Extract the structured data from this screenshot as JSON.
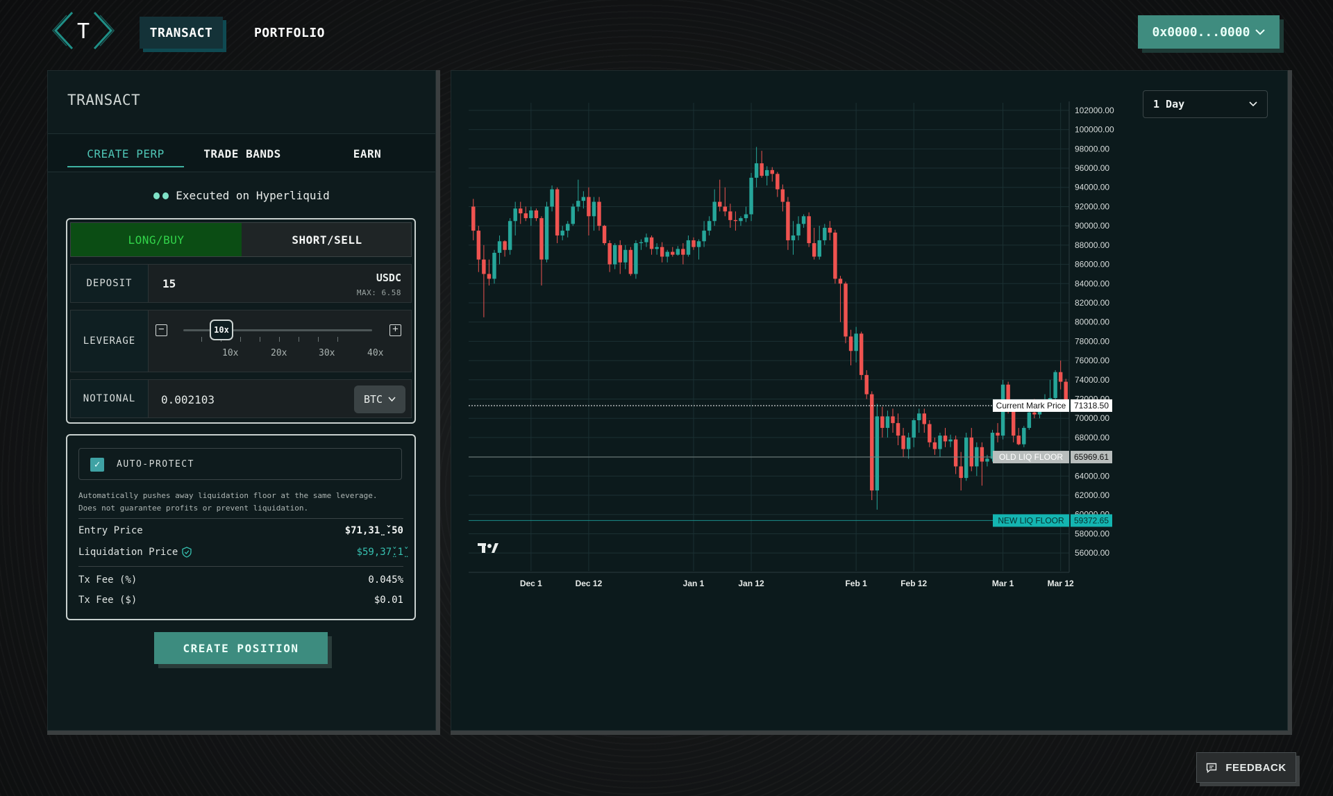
{
  "header": {
    "logo_letter": "T",
    "nav": [
      {
        "label": "TRANSACT"
      },
      {
        "label": "PORTFOLIO"
      }
    ],
    "wallet": "0x0000...0000"
  },
  "transact": {
    "title": "TRANSACT",
    "tabs": [
      {
        "label": "CREATE PERP"
      },
      {
        "label": "TRADE BANDS"
      },
      {
        "label": "EARN"
      }
    ],
    "executed_on": "Executed on Hyperliquid",
    "side": {
      "long": "LONG/BUY",
      "short": "SHORT/SELL"
    },
    "deposit": {
      "label": "DEPOSIT",
      "value": "15",
      "currency": "USDC",
      "max": "MAX: 6.58"
    },
    "leverage": {
      "label": "LEVERAGE",
      "current": "10x",
      "ticks": [
        "10x",
        "20x",
        "30x",
        "40x"
      ]
    },
    "notional": {
      "label": "NOTIONAL",
      "value": "0.002103",
      "asset": "BTC"
    },
    "auto_protect": {
      "label": "AUTO-PROTECT",
      "checked": true,
      "desc1": "Automatically pushes away liquidation floor at the same leverage.",
      "desc2": "Does not guarantee profits or prevent liquidation."
    },
    "entry_price": {
      "label": "Entry Price",
      "value": "$71,31̤̌.50"
    },
    "liq_price": {
      "label": "Liquidation Price",
      "value": "$59,37̤̌.1̤̌"
    },
    "tx_fee_pct": {
      "label": "Tx Fee (%)",
      "value": "0.045%"
    },
    "tx_fee_usd": {
      "label": "Tx Fee ($)",
      "value": "$0.01"
    },
    "create_button": "CREATE POSITION"
  },
  "feedback": "FEEDBACK",
  "colors": {
    "up": "#26a69a",
    "down": "#ef5350",
    "accent": "#3f8c7f",
    "long_bg": "#0b4d14",
    "long_text": "#32d44a"
  },
  "chart_data": {
    "type": "candlestick",
    "interval": "1 Day",
    "y_ticks": [
      "102000.00",
      "100000.00",
      "98000.00",
      "96000.00",
      "94000.00",
      "92000.00",
      "90000.00",
      "88000.00",
      "86000.00",
      "84000.00",
      "82000.00",
      "80000.00",
      "78000.00",
      "76000.00",
      "74000.00",
      "72000.00",
      "70000.00",
      "68000.00",
      "66000.00",
      "64000.00",
      "62000.00",
      "60000.00",
      "58000.00",
      "56000.00"
    ],
    "ylim": [
      55000,
      102500
    ],
    "x_ticks": [
      {
        "label": "Dec 1",
        "day": 11
      },
      {
        "label": "Dec 12",
        "day": 22
      },
      {
        "label": "Jan 1",
        "day": 42
      },
      {
        "label": "Jan 12",
        "day": 53
      },
      {
        "label": "Feb 1",
        "day": 73
      },
      {
        "label": "Feb 12",
        "day": 84
      },
      {
        "label": "Mar 1",
        "day": 101
      },
      {
        "label": "Mar 12",
        "day": 112
      }
    ],
    "levels": [
      {
        "name": "Current Mark Price",
        "value": 71318.5,
        "label": "71318.50",
        "style": "dotted",
        "color": "#ffffff"
      },
      {
        "name": "OLD LIQ FLOOR",
        "value": 65969.61,
        "label": "65969.61",
        "style": "solid",
        "color": "#b8bdbc"
      },
      {
        "name": "NEW LIQ FLOOR",
        "value": 59372.65,
        "label": "59372.65",
        "style": "solid",
        "color": "#1fb7b3"
      }
    ],
    "candles": [
      [
        92000,
        92800,
        88500,
        89500
      ],
      [
        89500,
        90000,
        85200,
        86500
      ],
      [
        86500,
        88000,
        80500,
        85000
      ],
      [
        85000,
        86500,
        83800,
        84500
      ],
      [
        84500,
        87500,
        84000,
        87200
      ],
      [
        87200,
        89000,
        86000,
        88400
      ],
      [
        88400,
        88500,
        86800,
        87500
      ],
      [
        87500,
        90800,
        87000,
        90500
      ],
      [
        90500,
        92500,
        89000,
        91800
      ],
      [
        91800,
        92500,
        90200,
        91300
      ],
      [
        91300,
        92000,
        90500,
        90800
      ],
      [
        90800,
        92000,
        90000,
        91600
      ],
      [
        91600,
        91800,
        90500,
        90800
      ],
      [
        90800,
        91000,
        83800,
        86500
      ],
      [
        86500,
        92500,
        86200,
        92000
      ],
      [
        92000,
        94200,
        91500,
        93800
      ],
      [
        93800,
        94000,
        88200,
        89000
      ],
      [
        89000,
        90000,
        88500,
        89500
      ],
      [
        89500,
        90500,
        88800,
        90200
      ],
      [
        90200,
        92300,
        90000,
        92000
      ],
      [
        92000,
        94800,
        91500,
        92600
      ],
      [
        92600,
        93600,
        91800,
        93000
      ],
      [
        93000,
        94000,
        89000,
        91000
      ],
      [
        91000,
        93000,
        89500,
        92500
      ],
      [
        92500,
        93000,
        89500,
        90000
      ],
      [
        90000,
        90100,
        88000,
        88200
      ],
      [
        88200,
        88500,
        85200,
        86000
      ],
      [
        86000,
        88200,
        85500,
        88000
      ],
      [
        88000,
        88500,
        85000,
        86200
      ],
      [
        86200,
        88000,
        85500,
        87500
      ],
      [
        87500,
        87800,
        84800,
        85000
      ],
      [
        85000,
        88500,
        84500,
        88200
      ],
      [
        88200,
        88600,
        87500,
        88300
      ],
      [
        88300,
        89200,
        87800,
        88800
      ],
      [
        88800,
        89000,
        87000,
        87600
      ],
      [
        87600,
        88200,
        87000,
        87800
      ],
      [
        87800,
        88300,
        86200,
        86800
      ],
      [
        86800,
        87500,
        86200,
        87300
      ],
      [
        87300,
        87800,
        86800,
        87000
      ],
      [
        87000,
        87900,
        86900,
        87600
      ],
      [
        87600,
        88200,
        86000,
        87000
      ],
      [
        87000,
        89000,
        86800,
        88500
      ],
      [
        88500,
        88800,
        87500,
        87800
      ],
      [
        87800,
        88600,
        86500,
        88400
      ],
      [
        88400,
        90500,
        87800,
        89500
      ],
      [
        89500,
        91000,
        89000,
        90500
      ],
      [
        90500,
        93800,
        90000,
        92500
      ],
      [
        92500,
        94800,
        91500,
        92000
      ],
      [
        92000,
        94000,
        91000,
        91500
      ],
      [
        91500,
        92300,
        89800,
        90600
      ],
      [
        90600,
        91500,
        89500,
        90500
      ],
      [
        90500,
        91000,
        90000,
        90800
      ],
      [
        90800,
        92000,
        90400,
        91200
      ],
      [
        91200,
        95500,
        90500,
        95000
      ],
      [
        95000,
        98200,
        94000,
        96500
      ],
      [
        96500,
        97800,
        95000,
        95200
      ],
      [
        95200,
        96200,
        94200,
        95800
      ],
      [
        95800,
        96100,
        94600,
        95400
      ],
      [
        95400,
        95600,
        93000,
        93800
      ],
      [
        93800,
        94300,
        91500,
        92500
      ],
      [
        92500,
        93000,
        87500,
        88500
      ],
      [
        88500,
        90500,
        87000,
        89000
      ],
      [
        89000,
        91000,
        88500,
        90200
      ],
      [
        90200,
        91200,
        89800,
        91000
      ],
      [
        91000,
        91400,
        87800,
        88200
      ],
      [
        88200,
        89800,
        86500,
        86800
      ],
      [
        86800,
        90000,
        86500,
        88500
      ],
      [
        88500,
        90200,
        88000,
        89800
      ],
      [
        89800,
        90500,
        88500,
        89300
      ],
      [
        89300,
        89600,
        84000,
        84500
      ],
      [
        84500,
        84800,
        80000,
        84000
      ],
      [
        84000,
        84200,
        77800,
        78500
      ],
      [
        78500,
        79200,
        75500,
        77000
      ],
      [
        77000,
        79500,
        75800,
        78800
      ],
      [
        78800,
        79000,
        74000,
        74500
      ],
      [
        74500,
        75000,
        72000,
        72500
      ],
      [
        72500,
        72800,
        61500,
        62500
      ],
      [
        62500,
        71500,
        60500,
        70200
      ],
      [
        70200,
        71200,
        68000,
        69000
      ],
      [
        69000,
        70800,
        68000,
        70200
      ],
      [
        70200,
        71000,
        68500,
        69500
      ],
      [
        69500,
        70500,
        67200,
        68200
      ],
      [
        68200,
        69000,
        66000,
        66800
      ],
      [
        66800,
        68500,
        65800,
        68000
      ],
      [
        68000,
        70000,
        67000,
        69800
      ],
      [
        69800,
        71000,
        68500,
        70500
      ],
      [
        70500,
        71000,
        68500,
        69400
      ],
      [
        69400,
        69800,
        67000,
        67500
      ],
      [
        67500,
        68000,
        66200,
        66800
      ],
      [
        66800,
        68500,
        66000,
        68200
      ],
      [
        68200,
        69000,
        67000,
        67600
      ],
      [
        67600,
        68300,
        67000,
        67800
      ],
      [
        67800,
        68200,
        64200,
        65000
      ],
      [
        65000,
        66500,
        62500,
        63800
      ],
      [
        63800,
        68500,
        63500,
        68000
      ],
      [
        68000,
        69000,
        64500,
        65000
      ],
      [
        65000,
        67500,
        64000,
        67000
      ],
      [
        67000,
        67500,
        63000,
        65500
      ],
      [
        65500,
        66200,
        65000,
        65800
      ],
      [
        65800,
        68800,
        65500,
        68500
      ],
      [
        68500,
        69500,
        67500,
        68200
      ],
      [
        68200,
        74000,
        67800,
        73500
      ],
      [
        73500,
        73800,
        70500,
        71000
      ],
      [
        71000,
        71500,
        67500,
        68200
      ],
      [
        68200,
        69000,
        67200,
        67300
      ],
      [
        67300,
        69200,
        67000,
        69000
      ],
      [
        69000,
        71000,
        68800,
        70600
      ],
      [
        70600,
        72000,
        70000,
        70400
      ],
      [
        70400,
        71400,
        70000,
        71000
      ],
      [
        71000,
        72500,
        70800,
        71400
      ],
      [
        71400,
        74000,
        71000,
        72100
      ],
      [
        72100,
        75000,
        71500,
        74800
      ],
      [
        74800,
        76000,
        73000,
        73800
      ],
      [
        73800,
        74100,
        70700,
        71400
      ]
    ]
  }
}
